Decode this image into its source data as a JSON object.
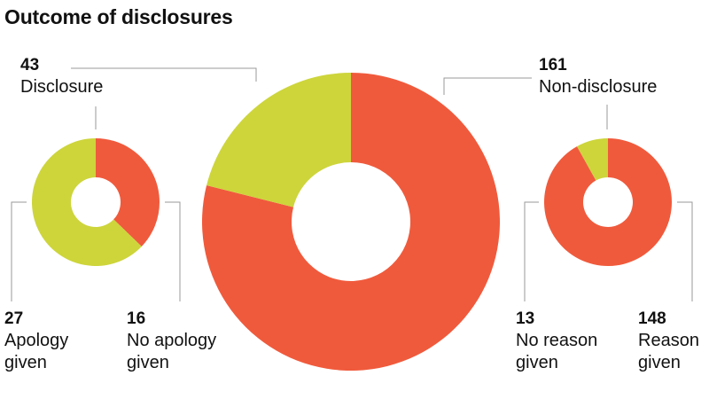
{
  "title": "Outcome of disclosures",
  "colors": {
    "disclosure": "#cdd53b",
    "non_disclosure": "#f05a3c",
    "leader": "#9a9a9a"
  },
  "chart_data": [
    {
      "type": "pie",
      "variant": "donut",
      "title": "Outcome of disclosures",
      "slices": [
        {
          "name": "Disclosure",
          "value": 43,
          "value_label": "43",
          "label": "Disclosure",
          "color": "#cdd53b"
        },
        {
          "name": "Non-disclosure",
          "value": 161,
          "value_label": "161",
          "label": "Non-disclosure",
          "color": "#f05a3c"
        }
      ]
    },
    {
      "type": "pie",
      "variant": "donut",
      "parent": "Disclosure",
      "slices": [
        {
          "name": "Apology given",
          "value": 27,
          "value_label": "27",
          "label_line1": "Apology",
          "label_line2": "given",
          "color": "#cdd53b"
        },
        {
          "name": "No apology given",
          "value": 16,
          "value_label": "16",
          "label_line1": "No apology",
          "label_line2": "given",
          "color": "#f05a3c"
        }
      ]
    },
    {
      "type": "pie",
      "variant": "donut",
      "parent": "Non-disclosure",
      "slices": [
        {
          "name": "No reason given",
          "value": 13,
          "value_label": "13",
          "label_line1": "No reason",
          "label_line2": "given",
          "color": "#cdd53b"
        },
        {
          "name": "Reason given",
          "value": 148,
          "value_label": "148",
          "label_line1": "Reason",
          "label_line2": "given",
          "color": "#f05a3c"
        }
      ]
    }
  ]
}
